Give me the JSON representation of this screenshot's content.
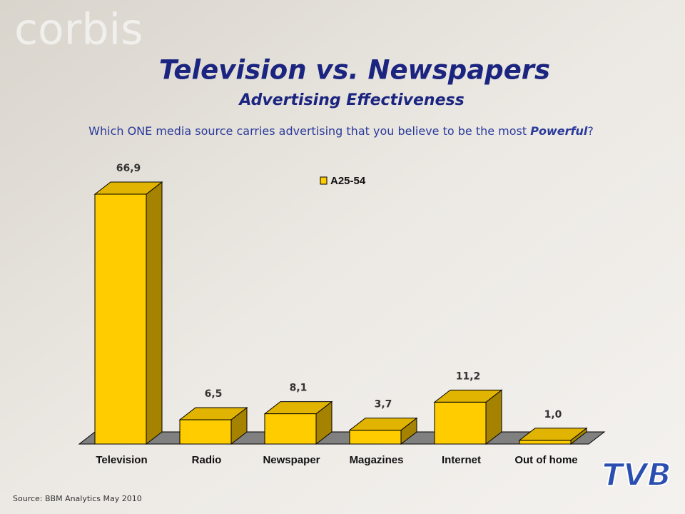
{
  "watermark": "corbis",
  "logo": "TVB",
  "source": "Source: BBM Analytics May 2010",
  "chart_data": {
    "type": "bar3d",
    "title": "Television vs. Newspapers",
    "subtitle": "Advertising Effectiveness",
    "question": {
      "text": "Which ONE media source carries advertising that you believe to be the most ",
      "emphasis": "Powerful",
      "end": "?"
    },
    "categories": [
      "Television",
      "Radio",
      "Newspaper",
      "Magazines",
      "Internet",
      "Out of home"
    ],
    "series": [
      {
        "name": "A25-54",
        "color": "#ffcc00",
        "values": [
          66.9,
          6.5,
          8.1,
          3.7,
          11.2,
          1.0
        ],
        "value_labels": [
          "66,9",
          "6,5",
          "8,1",
          "3,7",
          "11,2",
          "1,0"
        ]
      }
    ]
  }
}
